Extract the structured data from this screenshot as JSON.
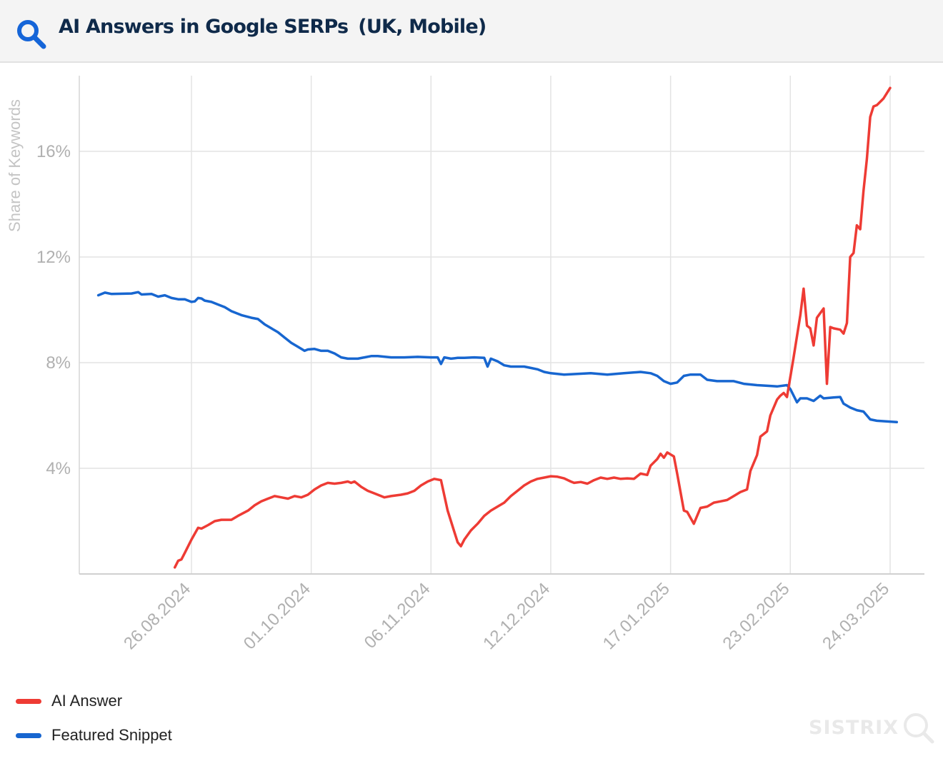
{
  "header": {
    "title": "AI Answers in Google SERPs",
    "region": "(UK, Mobile)",
    "icon": "search-icon",
    "accent_color": "#1565d8",
    "title_color": "#0f2a4a"
  },
  "legend": {
    "items": [
      {
        "label": "AI Answer",
        "color": "#ee3b34"
      },
      {
        "label": "Featured Snippet",
        "color": "#1766d0"
      }
    ]
  },
  "watermark": {
    "text": "SISTRIX",
    "color": "#d8d8d8",
    "icon": "sistrix-search-icon"
  },
  "chart_data": {
    "type": "line",
    "title": "AI Answers in Google SERPs (UK, Mobile)",
    "xlabel": "",
    "ylabel": "Share of Keywords",
    "x_unit": "days since 26.08.2024",
    "xlim": [
      -28,
      212
    ],
    "ylim": [
      0,
      18.5
    ],
    "grid": true,
    "legend_position": "bottom-left",
    "x_ticks": [
      {
        "value": 0,
        "label": "26.08.2024"
      },
      {
        "value": 36,
        "label": "01.10.2024"
      },
      {
        "value": 72,
        "label": "06.11.2024"
      },
      {
        "value": 108,
        "label": "12.12.2024"
      },
      {
        "value": 144,
        "label": "17.01.2025"
      },
      {
        "value": 180,
        "label": "23.02.2025"
      },
      {
        "value": 210,
        "label": "24.03.2025"
      }
    ],
    "y_ticks": [
      {
        "value": 4,
        "label": "4%"
      },
      {
        "value": 8,
        "label": "8%"
      },
      {
        "value": 12,
        "label": "12%"
      },
      {
        "value": 16,
        "label": "16%"
      }
    ],
    "series": [
      {
        "name": "AI Answer",
        "color": "#ee3b34",
        "points": [
          [
            -5,
            0.25
          ],
          [
            -4,
            0.5
          ],
          [
            -3,
            0.55
          ],
          [
            -2,
            0.8
          ],
          [
            0,
            1.3
          ],
          [
            2,
            1.75
          ],
          [
            3,
            1.72
          ],
          [
            5,
            1.85
          ],
          [
            7,
            2.0
          ],
          [
            9,
            2.05
          ],
          [
            12,
            2.05
          ],
          [
            14,
            2.2
          ],
          [
            17,
            2.4
          ],
          [
            19,
            2.6
          ],
          [
            21,
            2.75
          ],
          [
            23,
            2.85
          ],
          [
            25,
            2.95
          ],
          [
            27,
            2.9
          ],
          [
            29,
            2.85
          ],
          [
            31,
            2.95
          ],
          [
            33,
            2.9
          ],
          [
            35,
            3.0
          ],
          [
            37,
            3.2
          ],
          [
            39,
            3.35
          ],
          [
            41,
            3.45
          ],
          [
            43,
            3.42
          ],
          [
            45,
            3.45
          ],
          [
            47,
            3.5
          ],
          [
            48,
            3.45
          ],
          [
            49,
            3.5
          ],
          [
            51,
            3.3
          ],
          [
            53,
            3.15
          ],
          [
            55,
            3.05
          ],
          [
            57,
            2.95
          ],
          [
            58,
            2.9
          ],
          [
            60,
            2.95
          ],
          [
            63,
            3.0
          ],
          [
            65,
            3.05
          ],
          [
            67,
            3.15
          ],
          [
            69,
            3.35
          ],
          [
            71,
            3.5
          ],
          [
            73,
            3.6
          ],
          [
            75,
            3.55
          ],
          [
            77,
            2.4
          ],
          [
            79,
            1.6
          ],
          [
            80,
            1.2
          ],
          [
            81,
            1.05
          ],
          [
            82,
            1.3
          ],
          [
            84,
            1.65
          ],
          [
            86,
            1.9
          ],
          [
            88,
            2.2
          ],
          [
            90,
            2.4
          ],
          [
            92,
            2.55
          ],
          [
            94,
            2.7
          ],
          [
            96,
            2.95
          ],
          [
            98,
            3.15
          ],
          [
            100,
            3.35
          ],
          [
            102,
            3.5
          ],
          [
            104,
            3.6
          ],
          [
            106,
            3.65
          ],
          [
            108,
            3.7
          ],
          [
            110,
            3.68
          ],
          [
            112,
            3.62
          ],
          [
            114,
            3.5
          ],
          [
            115,
            3.45
          ],
          [
            117,
            3.48
          ],
          [
            119,
            3.42
          ],
          [
            121,
            3.55
          ],
          [
            123,
            3.65
          ],
          [
            125,
            3.6
          ],
          [
            127,
            3.65
          ],
          [
            129,
            3.6
          ],
          [
            131,
            3.62
          ],
          [
            133,
            3.6
          ],
          [
            135,
            3.8
          ],
          [
            137,
            3.75
          ],
          [
            138,
            4.1
          ],
          [
            140,
            4.35
          ],
          [
            141,
            4.55
          ],
          [
            142,
            4.4
          ],
          [
            143,
            4.6
          ],
          [
            145,
            4.45
          ],
          [
            146,
            3.8
          ],
          [
            148,
            2.4
          ],
          [
            149,
            2.35
          ],
          [
            151,
            1.9
          ],
          [
            153,
            2.5
          ],
          [
            155,
            2.55
          ],
          [
            157,
            2.7
          ],
          [
            159,
            2.75
          ],
          [
            161,
            2.8
          ],
          [
            163,
            2.95
          ],
          [
            165,
            3.1
          ],
          [
            167,
            3.2
          ],
          [
            168,
            3.9
          ],
          [
            170,
            4.5
          ],
          [
            171,
            5.2
          ],
          [
            173,
            5.4
          ],
          [
            174,
            6.0
          ],
          [
            176,
            6.6
          ],
          [
            177,
            6.75
          ],
          [
            178,
            6.85
          ],
          [
            179,
            6.7
          ],
          [
            181,
            8.2
          ],
          [
            183,
            9.8
          ],
          [
            184,
            10.8
          ],
          [
            185,
            9.4
          ],
          [
            186,
            9.3
          ],
          [
            187,
            8.65
          ],
          [
            188,
            9.7
          ],
          [
            190,
            10.05
          ],
          [
            191,
            7.2
          ],
          [
            192,
            9.35
          ],
          [
            193,
            9.3
          ],
          [
            195,
            9.25
          ],
          [
            196,
            9.1
          ],
          [
            197,
            9.5
          ],
          [
            198,
            12.0
          ],
          [
            199,
            12.15
          ],
          [
            200,
            13.2
          ],
          [
            201,
            13.05
          ],
          [
            202,
            14.5
          ],
          [
            203,
            15.7
          ],
          [
            204,
            17.3
          ],
          [
            205,
            17.7
          ],
          [
            206,
            17.75
          ],
          [
            208,
            18.0
          ],
          [
            210,
            18.4
          ]
        ]
      },
      {
        "name": "Featured Snippet",
        "color": "#1766d0",
        "points": [
          [
            -28,
            10.55
          ],
          [
            -26,
            10.65
          ],
          [
            -24,
            10.6
          ],
          [
            -18,
            10.62
          ],
          [
            -16,
            10.67
          ],
          [
            -15,
            10.58
          ],
          [
            -12,
            10.6
          ],
          [
            -10,
            10.5
          ],
          [
            -8,
            10.55
          ],
          [
            -6,
            10.45
          ],
          [
            -4,
            10.4
          ],
          [
            -2,
            10.4
          ],
          [
            0,
            10.3
          ],
          [
            1,
            10.32
          ],
          [
            2,
            10.45
          ],
          [
            3,
            10.43
          ],
          [
            4,
            10.35
          ],
          [
            6,
            10.3
          ],
          [
            8,
            10.2
          ],
          [
            10,
            10.1
          ],
          [
            12,
            9.95
          ],
          [
            15,
            9.8
          ],
          [
            18,
            9.7
          ],
          [
            20,
            9.65
          ],
          [
            22,
            9.45
          ],
          [
            24,
            9.3
          ],
          [
            26,
            9.15
          ],
          [
            28,
            8.95
          ],
          [
            30,
            8.75
          ],
          [
            32,
            8.6
          ],
          [
            34,
            8.45
          ],
          [
            35,
            8.5
          ],
          [
            37,
            8.52
          ],
          [
            39,
            8.45
          ],
          [
            41,
            8.45
          ],
          [
            43,
            8.35
          ],
          [
            45,
            8.2
          ],
          [
            47,
            8.15
          ],
          [
            50,
            8.15
          ],
          [
            52,
            8.2
          ],
          [
            54,
            8.25
          ],
          [
            56,
            8.25
          ],
          [
            60,
            8.2
          ],
          [
            64,
            8.2
          ],
          [
            68,
            8.22
          ],
          [
            72,
            8.2
          ],
          [
            74,
            8.2
          ],
          [
            75,
            7.95
          ],
          [
            76,
            8.2
          ],
          [
            78,
            8.15
          ],
          [
            80,
            8.18
          ],
          [
            82,
            8.18
          ],
          [
            85,
            8.2
          ],
          [
            88,
            8.18
          ],
          [
            89,
            7.85
          ],
          [
            90,
            8.15
          ],
          [
            92,
            8.05
          ],
          [
            94,
            7.9
          ],
          [
            96,
            7.85
          ],
          [
            100,
            7.85
          ],
          [
            102,
            7.8
          ],
          [
            104,
            7.75
          ],
          [
            106,
            7.65
          ],
          [
            108,
            7.6
          ],
          [
            112,
            7.55
          ],
          [
            120,
            7.6
          ],
          [
            125,
            7.55
          ],
          [
            130,
            7.6
          ],
          [
            135,
            7.65
          ],
          [
            138,
            7.6
          ],
          [
            140,
            7.5
          ],
          [
            142,
            7.3
          ],
          [
            144,
            7.2
          ],
          [
            146,
            7.25
          ],
          [
            148,
            7.5
          ],
          [
            150,
            7.55
          ],
          [
            153,
            7.55
          ],
          [
            155,
            7.35
          ],
          [
            158,
            7.3
          ],
          [
            163,
            7.3
          ],
          [
            166,
            7.2
          ],
          [
            170,
            7.15
          ],
          [
            174,
            7.12
          ],
          [
            176,
            7.1
          ],
          [
            179,
            7.15
          ],
          [
            180,
            7.0
          ],
          [
            182,
            6.5
          ],
          [
            183,
            6.65
          ],
          [
            185,
            6.65
          ],
          [
            187,
            6.55
          ],
          [
            189,
            6.75
          ],
          [
            190,
            6.65
          ],
          [
            193,
            6.68
          ],
          [
            195,
            6.7
          ],
          [
            196,
            6.45
          ],
          [
            198,
            6.3
          ],
          [
            200,
            6.2
          ],
          [
            202,
            6.15
          ],
          [
            204,
            5.85
          ],
          [
            206,
            5.8
          ],
          [
            212,
            5.75
          ]
        ]
      }
    ]
  }
}
